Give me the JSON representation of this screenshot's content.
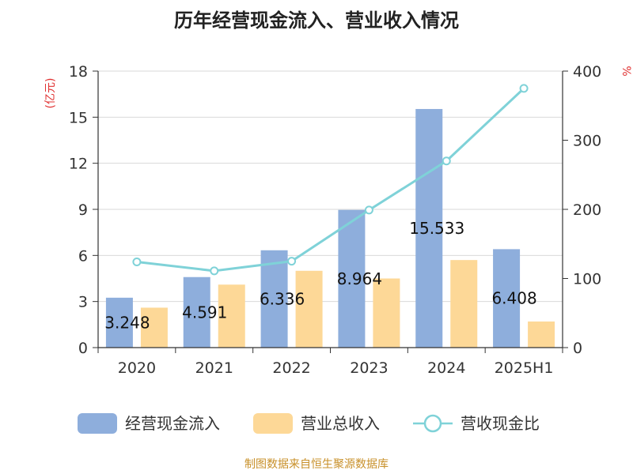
{
  "chart_data": {
    "type": "bar",
    "title": "历年经营现金流入、营业收入情况",
    "categories": [
      "2020",
      "2021",
      "2022",
      "2023",
      "2024",
      "2025H1"
    ],
    "series": [
      {
        "name": "经营现金流入",
        "type": "bar",
        "axis": "left",
        "color": "#8eaedc",
        "values": [
          3.248,
          4.591,
          6.336,
          8.964,
          15.533,
          6.408
        ],
        "labels": [
          "3.248",
          "4.591",
          "6.336",
          "8.964",
          "15.533",
          "6.408"
        ]
      },
      {
        "name": "营业总收入",
        "type": "bar",
        "axis": "left",
        "color": "#fdd897",
        "values": [
          2.6,
          4.1,
          5.0,
          4.5,
          5.7,
          1.7
        ]
      },
      {
        "name": "营收现金比",
        "type": "line",
        "axis": "right",
        "color": "#7fd2d8",
        "values": [
          124,
          111,
          125,
          199,
          270,
          375
        ]
      }
    ],
    "y_left": {
      "unit": "(亿元)",
      "ylim": [
        0,
        18
      ],
      "ticks": [
        "0",
        "3",
        "6",
        "9",
        "12",
        "15",
        "18"
      ]
    },
    "y_right": {
      "unit": "%",
      "ylim": [
        0,
        400
      ],
      "ticks": [
        "0",
        "100",
        "200",
        "300",
        "400"
      ]
    },
    "grid": true,
    "legend_position": "bottom",
    "source": "制图数据来自恒生聚源数据库"
  },
  "colors": {
    "unit_left": "#e03030",
    "unit_right": "#e03030",
    "source": "#c8902a",
    "grid": "#d9d9d9",
    "axis": "#333333"
  }
}
